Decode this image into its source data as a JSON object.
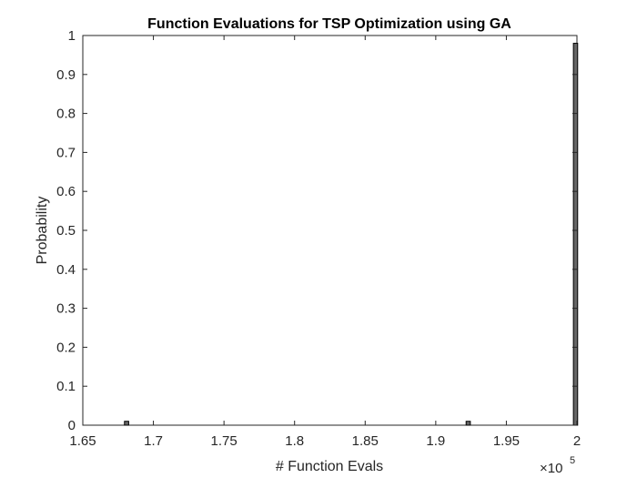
{
  "chart_data": {
    "type": "bar",
    "title": "Function Evaluations for TSP Optimization using GA",
    "xlabel": "# Function Evals",
    "ylabel": "Probability",
    "xlim": [
      165000,
      200000
    ],
    "ylim": [
      0,
      1
    ],
    "x_exponent_label": {
      "base": "×10",
      "exponent": "5"
    },
    "xticks": [
      165000,
      170000,
      175000,
      180000,
      185000,
      190000,
      195000,
      200000
    ],
    "xtick_labels": [
      "1.65",
      "1.7",
      "1.75",
      "1.8",
      "1.85",
      "1.9",
      "1.95",
      "2"
    ],
    "yticks": [
      0,
      0.1,
      0.2,
      0.3,
      0.4,
      0.5,
      0.6,
      0.7,
      0.8,
      0.9,
      1
    ],
    "ytick_labels": [
      "0",
      "0.1",
      "0.2",
      "0.3",
      "0.4",
      "0.5",
      "0.6",
      "0.7",
      "0.8",
      "0.9",
      "1"
    ],
    "bars": [
      {
        "x": 168100,
        "value": 0.01
      },
      {
        "x": 192300,
        "value": 0.01
      },
      {
        "x": 199900,
        "value": 0.98
      }
    ],
    "bar_width": 300,
    "bar_color": "#666666",
    "bar_edge_color": "#000000",
    "grid": false
  }
}
